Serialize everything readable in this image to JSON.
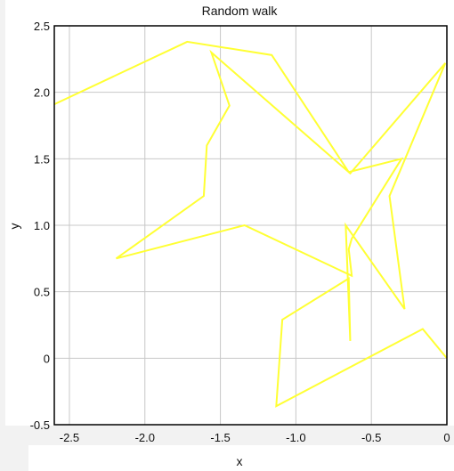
{
  "chart_data": {
    "type": "line",
    "title": "Random walk",
    "xlabel": "x",
    "ylabel": "y",
    "xlim": [
      -2.6,
      0.0
    ],
    "ylim": [
      -0.5,
      2.5
    ],
    "grid": true,
    "line_color": "#ffff33",
    "xticks": [
      -2.5,
      -2.0,
      -1.5,
      -1.0,
      -0.5,
      0.0
    ],
    "xtick_labels": [
      "-2.5",
      "-2.0",
      "-1.5",
      "-1.0",
      "-0.5",
      "0"
    ],
    "yticks": [
      -0.5,
      0.0,
      0.5,
      1.0,
      1.5,
      2.0,
      2.5
    ],
    "ytick_labels": [
      "-0.5",
      "0",
      "0.5",
      "1.0",
      "1.5",
      "2.0",
      "2.5"
    ],
    "series": [
      {
        "x": [
          0.0,
          -0.16,
          -1.13,
          -1.09,
          -0.65,
          -0.64,
          -0.67,
          -0.28,
          -0.38,
          -0.01,
          -0.64,
          -1.56,
          -1.44,
          -1.59,
          -1.61,
          -2.19,
          -1.34,
          -0.63,
          -0.65,
          -0.63,
          -0.3,
          -0.65,
          -1.16,
          -1.72,
          -2.6
        ],
        "y": [
          0.0,
          0.22,
          -0.36,
          0.29,
          0.6,
          0.13,
          1.0,
          0.37,
          1.22,
          2.22,
          1.39,
          2.3,
          1.9,
          1.6,
          1.22,
          0.75,
          1.0,
          0.62,
          0.82,
          0.9,
          1.5,
          1.4,
          2.28,
          2.38,
          1.91
        ]
      }
    ]
  }
}
